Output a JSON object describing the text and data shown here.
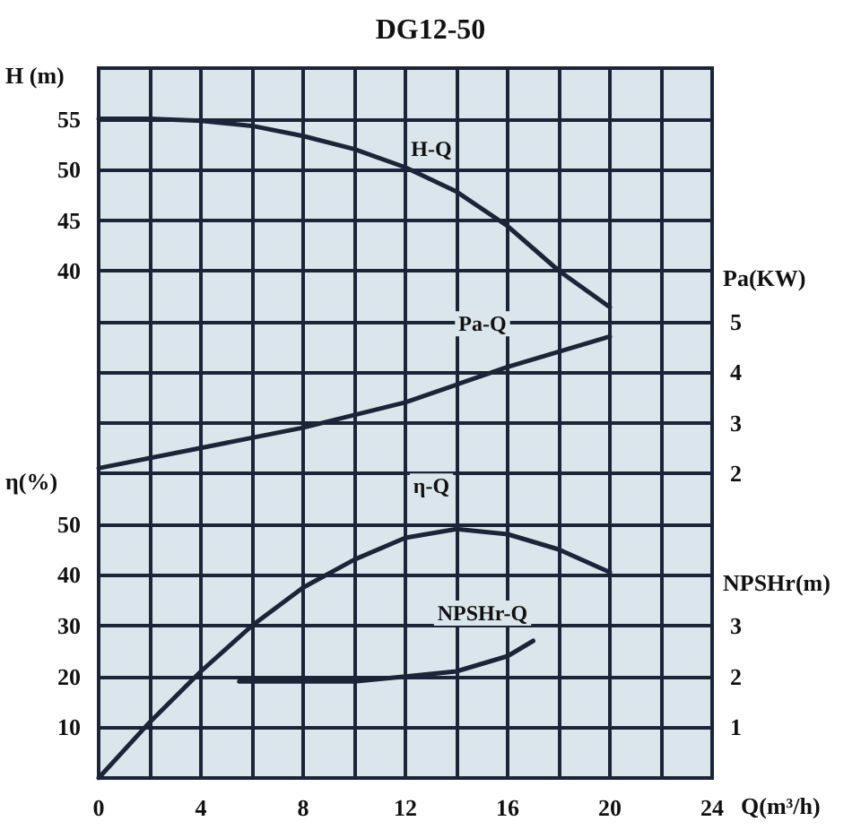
{
  "chart_data": [
    {
      "type": "line",
      "title": "DG12-50",
      "ylabel": "H (m)",
      "y2label": "Pa(KW)",
      "xlim": [
        0,
        24
      ],
      "xticks": [
        0,
        {
          "value": 2,
          "label": null
        },
        4,
        {
          "value": 6,
          "label": null
        },
        8,
        {
          "value": 10,
          "label": null
        },
        12,
        {
          "value": 14,
          "label": null
        },
        16,
        {
          "value": 18,
          "label": null
        },
        20,
        {
          "value": 22,
          "label": null
        },
        24
      ],
      "ylim": [
        20,
        60
      ],
      "yticks": [
        40,
        45,
        50,
        55
      ],
      "y2lim": [
        2,
        10
      ],
      "y2ticks": [
        2,
        3,
        4,
        5
      ],
      "tick_labels": "y",
      "grid": true,
      "marker": "none",
      "line_style": "solid",
      "series": [
        {
          "name": "H-Q",
          "color": "#1c2438",
          "x": [
            0,
            2,
            4,
            6,
            8,
            10,
            12,
            14,
            16,
            18,
            20
          ],
          "values": [
            55,
            55,
            54.8,
            54.3,
            53.3,
            52,
            50.2,
            47.8,
            44.4,
            40,
            36.4
          ]
        },
        {
          "name": "Pa-Q",
          "axis": "y2",
          "color": "#1c2438",
          "x": [
            0,
            4,
            8,
            12,
            16,
            20
          ],
          "values": [
            2.1,
            2.5,
            2.9,
            3.4,
            4.1,
            4.7
          ]
        }
      ]
    },
    {
      "type": "line",
      "xlabel": "Q(m³/h)",
      "ylabel": "η(%)",
      "y2label": "NPSHr(m)",
      "xlim": [
        0,
        24
      ],
      "xticks": [
        0,
        {
          "value": 2,
          "label": null
        },
        4,
        {
          "value": 6,
          "label": null
        },
        8,
        {
          "value": 10,
          "label": null
        },
        12,
        {
          "value": 14,
          "label": null
        },
        16,
        {
          "value": 18,
          "label": null
        },
        20,
        {
          "value": 22,
          "label": null
        },
        24
      ],
      "ylim": [
        0,
        60
      ],
      "yticks": [
        10,
        20,
        30,
        40,
        50
      ],
      "y2lim": [
        0,
        6
      ],
      "y2ticks": [
        1,
        2,
        3
      ],
      "grid": true,
      "marker": "none",
      "line_style": "solid",
      "series": [
        {
          "name": "η-Q",
          "color": "#1c2438",
          "x": [
            0,
            2,
            4,
            6,
            8,
            10,
            12,
            14,
            16,
            18,
            20
          ],
          "values": [
            0,
            11,
            21,
            30,
            37.5,
            43,
            47.3,
            49,
            48,
            45,
            40.5
          ]
        },
        {
          "name": "NPSHr-Q",
          "axis": "y2",
          "color": "#1c2438",
          "x": [
            5.5,
            10,
            12,
            14,
            16,
            17
          ],
          "values": [
            1.9,
            1.9,
            2.0,
            2.1,
            2.4,
            2.7
          ]
        }
      ]
    }
  ]
}
